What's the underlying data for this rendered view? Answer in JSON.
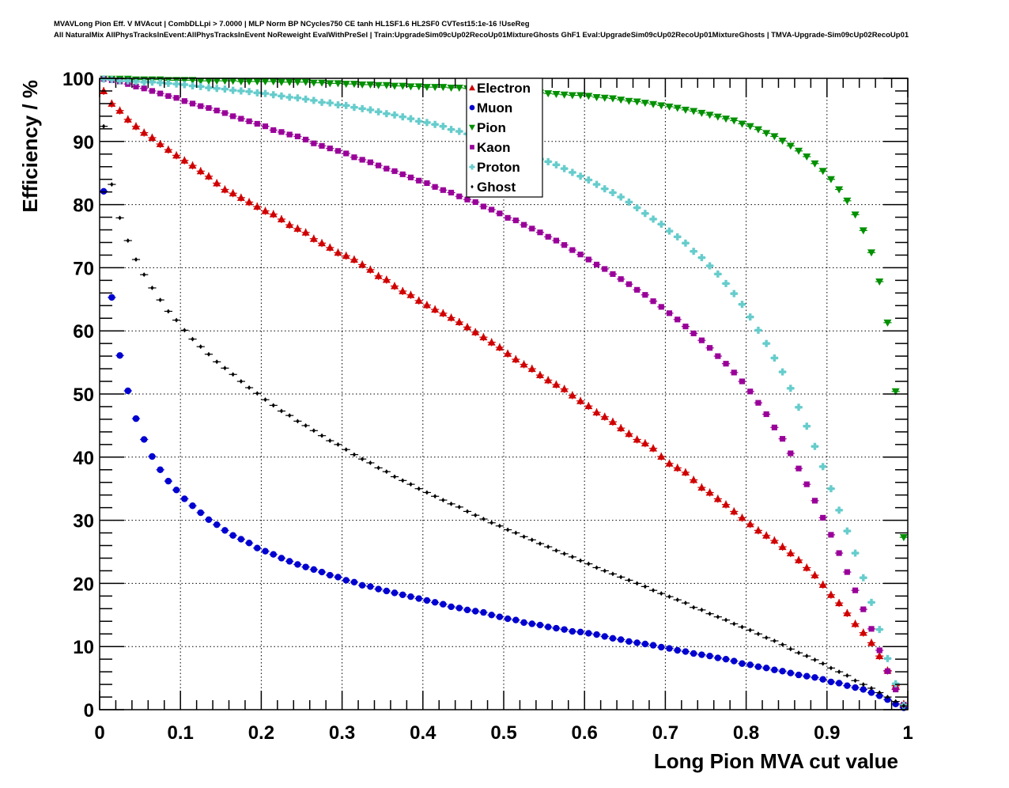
{
  "title": {
    "line1": "MVAVLong Pion Eff. V MVAcut | CombDLLpi > 7.0000 | MLP Norm BP NCycles750 CE tanh HL1SF1.6 HL2SF0 CVTest15:1e-16 !UseReg",
    "line2": "All NaturalMix AllPhysTracksInEvent:AllPhysTracksInEvent NoReweight EvalWithPreSel | Train:UpgradeSim09cUp02RecoUp01MixtureGhosts GhF1 Eval:UpgradeSim09cUp02RecoUp01MixtureGhosts | TMVA-Upgrade-Sim09cUp02RecoUp01"
  },
  "chart_data": {
    "type": "scatter",
    "xlabel": "Long Pion MVA cut value",
    "ylabel": "Efficiency / %",
    "xlim": [
      0,
      1
    ],
    "ylim": [
      0,
      100
    ],
    "xticks": [
      "0",
      "0.1",
      "0.2",
      "0.3",
      "0.4",
      "0.5",
      "0.6",
      "0.7",
      "0.8",
      "0.9",
      "1"
    ],
    "yticks": [
      "0",
      "10",
      "20",
      "30",
      "40",
      "50",
      "60",
      "70",
      "80",
      "90",
      "100"
    ],
    "grid": true,
    "legend_position": "top-center",
    "x_start": 0.005,
    "x_step": 0.01,
    "series": [
      {
        "name": "Electron",
        "marker": "triangle-up",
        "color": "#d00000",
        "values": [
          98.0,
          96.0,
          94.9,
          93.5,
          92.4,
          91.4,
          90.6,
          89.6,
          88.7,
          87.8,
          87.0,
          86.2,
          85.3,
          84.5,
          83.4,
          82.4,
          81.8,
          81.1,
          80.4,
          79.7,
          79.0,
          78.5,
          77.7,
          76.8,
          76.2,
          75.6,
          74.6,
          73.9,
          73.2,
          72.4,
          71.9,
          71.3,
          70.5,
          69.7,
          68.7,
          68.1,
          67.1,
          66.3,
          65.7,
          64.8,
          64.1,
          63.4,
          62.8,
          62.1,
          61.4,
          60.6,
          59.8,
          59.0,
          58.2,
          57.4,
          56.4,
          55.5,
          54.7,
          54.0,
          53.0,
          52.2,
          51.5,
          50.8,
          49.8,
          48.9,
          48.1,
          47.1,
          46.4,
          45.6,
          44.6,
          43.7,
          42.8,
          42.2,
          41.4,
          40.1,
          39.0,
          38.3,
          37.6,
          36.4,
          35.2,
          34.4,
          33.4,
          32.5,
          31.4,
          30.4,
          29.4,
          28.4,
          27.6,
          26.8,
          25.8,
          24.8,
          23.7,
          22.5,
          21.3,
          19.8,
          18.2,
          16.9,
          15.3,
          13.6,
          12.2,
          10.6,
          8.5,
          6.2,
          3.8,
          0.9
        ]
      },
      {
        "name": "Muon",
        "marker": "circle",
        "color": "#0000d0",
        "values": [
          82.1,
          65.3,
          56.1,
          50.5,
          46.1,
          42.8,
          40.1,
          38.0,
          36.2,
          34.8,
          33.4,
          32.3,
          31.2,
          30.1,
          29.3,
          28.4,
          27.6,
          27.0,
          26.4,
          25.6,
          25.1,
          24.6,
          24.0,
          23.5,
          23.0,
          22.6,
          22.2,
          21.8,
          21.3,
          21.0,
          20.5,
          20.2,
          19.7,
          19.5,
          19.1,
          18.8,
          18.5,
          18.2,
          17.9,
          17.6,
          17.3,
          17.0,
          16.7,
          16.3,
          16.1,
          15.8,
          15.6,
          15.4,
          15.0,
          14.7,
          14.4,
          14.2,
          13.8,
          13.6,
          13.4,
          13.1,
          12.9,
          12.7,
          12.4,
          12.3,
          12.1,
          11.9,
          11.6,
          11.3,
          11.1,
          10.8,
          10.6,
          10.4,
          10.2,
          9.9,
          9.7,
          9.4,
          9.2,
          8.9,
          8.7,
          8.5,
          8.2,
          8.0,
          7.7,
          7.3,
          7.1,
          6.8,
          6.6,
          6.3,
          6.1,
          5.8,
          5.5,
          5.3,
          5.1,
          4.8,
          4.4,
          4.2,
          3.8,
          3.5,
          3.2,
          2.7,
          2.2,
          1.6,
          0.9,
          0.3
        ]
      },
      {
        "name": "Pion",
        "marker": "triangle-down",
        "color": "#009000",
        "values": [
          99.9,
          99.9,
          99.9,
          99.9,
          99.8,
          99.8,
          99.8,
          99.8,
          99.7,
          99.7,
          99.7,
          99.7,
          99.6,
          99.6,
          99.6,
          99.6,
          99.6,
          99.5,
          99.5,
          99.5,
          99.5,
          99.5,
          99.4,
          99.4,
          99.4,
          99.4,
          99.3,
          99.3,
          99.2,
          99.2,
          99.1,
          99.1,
          99.0,
          99.0,
          98.9,
          98.9,
          98.8,
          98.8,
          98.7,
          98.7,
          98.6,
          98.6,
          98.6,
          98.5,
          98.5,
          98.4,
          98.3,
          98.3,
          98.2,
          98.1,
          98.0,
          98.0,
          97.9,
          97.8,
          97.7,
          97.6,
          97.5,
          97.4,
          97.3,
          97.3,
          97.2,
          97.0,
          96.9,
          96.8,
          96.6,
          96.4,
          96.3,
          96.1,
          95.9,
          95.7,
          95.5,
          95.3,
          95.0,
          94.8,
          94.5,
          94.2,
          93.9,
          93.6,
          93.3,
          92.8,
          92.4,
          91.9,
          91.3,
          90.8,
          90.1,
          89.3,
          88.5,
          87.6,
          86.5,
          85.3,
          84.0,
          82.4,
          80.6,
          78.4,
          75.9,
          72.4,
          67.8,
          61.3,
          50.4,
          27.3
        ]
      },
      {
        "name": "Kaon",
        "marker": "square",
        "color": "#990099",
        "values": [
          99.9,
          99.7,
          99.5,
          99.1,
          98.7,
          98.4,
          98.0,
          97.6,
          97.2,
          96.9,
          96.4,
          96.0,
          95.6,
          95.3,
          94.9,
          94.5,
          94.0,
          93.6,
          93.2,
          92.8,
          92.4,
          91.8,
          91.5,
          91.1,
          90.8,
          90.3,
          89.7,
          89.3,
          88.9,
          88.5,
          88.1,
          87.5,
          87.1,
          86.7,
          86.2,
          85.7,
          85.3,
          84.8,
          84.3,
          83.8,
          83.4,
          82.8,
          82.3,
          81.9,
          81.3,
          80.8,
          80.4,
          79.7,
          79.2,
          78.6,
          77.9,
          77.5,
          76.8,
          76.2,
          75.6,
          74.9,
          74.3,
          73.6,
          72.8,
          72.1,
          71.3,
          70.5,
          69.8,
          69.0,
          68.2,
          67.4,
          66.5,
          65.7,
          64.7,
          63.8,
          62.8,
          61.8,
          60.7,
          59.6,
          58.5,
          57.3,
          56.0,
          54.8,
          53.4,
          52.0,
          50.4,
          48.6,
          46.8,
          44.7,
          42.9,
          40.6,
          38.2,
          35.7,
          33.1,
          30.4,
          27.7,
          24.8,
          21.8,
          18.9,
          15.9,
          12.8,
          9.4,
          6.1,
          3.2,
          0.8
        ]
      },
      {
        "name": "Proton",
        "marker": "cross",
        "color": "#66cccc",
        "values": [
          99.9,
          99.8,
          99.6,
          99.6,
          99.5,
          99.4,
          99.4,
          99.3,
          99.2,
          99.1,
          99.0,
          98.8,
          98.7,
          98.5,
          98.4,
          98.3,
          98.1,
          98.0,
          97.9,
          97.7,
          97.6,
          97.4,
          97.2,
          97.0,
          96.9,
          96.7,
          96.5,
          96.2,
          96.1,
          95.8,
          95.7,
          95.4,
          95.2,
          95.0,
          94.7,
          94.4,
          94.2,
          93.9,
          93.6,
          93.2,
          93.0,
          92.7,
          92.4,
          91.9,
          91.6,
          91.2,
          90.8,
          90.4,
          89.9,
          89.5,
          89.0,
          88.6,
          88.1,
          87.6,
          87.2,
          86.8,
          86.3,
          85.7,
          85.1,
          84.5,
          83.9,
          83.2,
          82.5,
          81.9,
          81.2,
          80.4,
          79.5,
          78.6,
          77.7,
          76.9,
          75.8,
          74.9,
          73.9,
          72.6,
          71.6,
          70.3,
          69.0,
          67.5,
          65.9,
          64.2,
          62.2,
          60.1,
          58.0,
          55.7,
          53.5,
          50.9,
          47.9,
          44.9,
          41.7,
          38.5,
          35.0,
          31.6,
          28.3,
          24.8,
          20.9,
          17.0,
          12.7,
          8.1,
          4.1,
          0.7
        ]
      },
      {
        "name": "Ghost",
        "marker": "star",
        "color": "#000000",
        "values": [
          92.4,
          83.2,
          77.9,
          74.3,
          71.3,
          68.9,
          66.8,
          64.9,
          63.1,
          61.7,
          60.1,
          58.7,
          57.5,
          56.3,
          55.1,
          54.1,
          53.1,
          52.0,
          51.0,
          50.1,
          49.1,
          48.2,
          47.3,
          46.6,
          45.7,
          45.0,
          44.2,
          43.4,
          42.6,
          42.0,
          41.2,
          40.4,
          39.7,
          39.1,
          38.3,
          37.7,
          36.9,
          36.3,
          35.7,
          35.0,
          34.4,
          33.8,
          33.2,
          32.6,
          32.1,
          31.4,
          30.8,
          30.2,
          29.6,
          29.1,
          28.5,
          28.0,
          27.4,
          26.9,
          26.3,
          25.8,
          25.2,
          24.7,
          24.2,
          23.6,
          23.1,
          22.5,
          22.0,
          21.5,
          21.0,
          20.5,
          20.0,
          19.5,
          18.9,
          18.4,
          17.9,
          17.4,
          16.9,
          16.2,
          15.8,
          15.2,
          14.7,
          14.2,
          13.6,
          13.1,
          12.6,
          12.0,
          11.4,
          10.9,
          10.3,
          9.6,
          9.0,
          8.5,
          7.9,
          7.3,
          6.6,
          6.0,
          5.4,
          4.6,
          4.0,
          3.4,
          2.7,
          2.0,
          1.3,
          0.6
        ]
      }
    ]
  }
}
